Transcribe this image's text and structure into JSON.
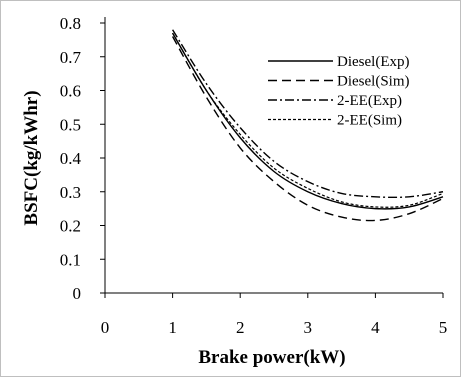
{
  "chart_data": {
    "type": "line",
    "xlabel": "Brake power(kW)",
    "ylabel": "BSFC(kg/kWhr)",
    "xlim": [
      0,
      5
    ],
    "ylim": [
      0,
      0.8
    ],
    "xticks": [
      "0",
      "1",
      "2",
      "3",
      "4",
      "5"
    ],
    "yticks": [
      "0",
      "0.1",
      "0.2",
      "0.3",
      "0.4",
      "0.5",
      "0.6",
      "0.7",
      "0.8"
    ],
    "grid": false,
    "legend_position": "top-right",
    "x": [
      1,
      1.5,
      2,
      2.5,
      3,
      3.5,
      4,
      4.5,
      5
    ],
    "series": [
      {
        "name": "Diesel(Exp)",
        "style": "solid",
        "values": [
          0.77,
          0.6,
          0.46,
          0.36,
          0.3,
          0.265,
          0.25,
          0.255,
          0.285
        ]
      },
      {
        "name": "Diesel(Sim)",
        "style": "dashed",
        "values": [
          0.76,
          0.58,
          0.43,
          0.33,
          0.26,
          0.225,
          0.215,
          0.235,
          0.28
        ]
      },
      {
        "name": "2-EE(Exp)",
        "style": "dashdot",
        "values": [
          0.78,
          0.62,
          0.49,
          0.39,
          0.33,
          0.295,
          0.285,
          0.285,
          0.3
        ]
      },
      {
        "name": "2-EE(Sim)",
        "style": "dotted",
        "values": [
          0.77,
          0.6,
          0.47,
          0.37,
          0.31,
          0.27,
          0.255,
          0.26,
          0.295
        ]
      }
    ],
    "colors": {
      "axis": "#000000",
      "lines": "#000000",
      "frame": "#bfbfbf"
    }
  }
}
